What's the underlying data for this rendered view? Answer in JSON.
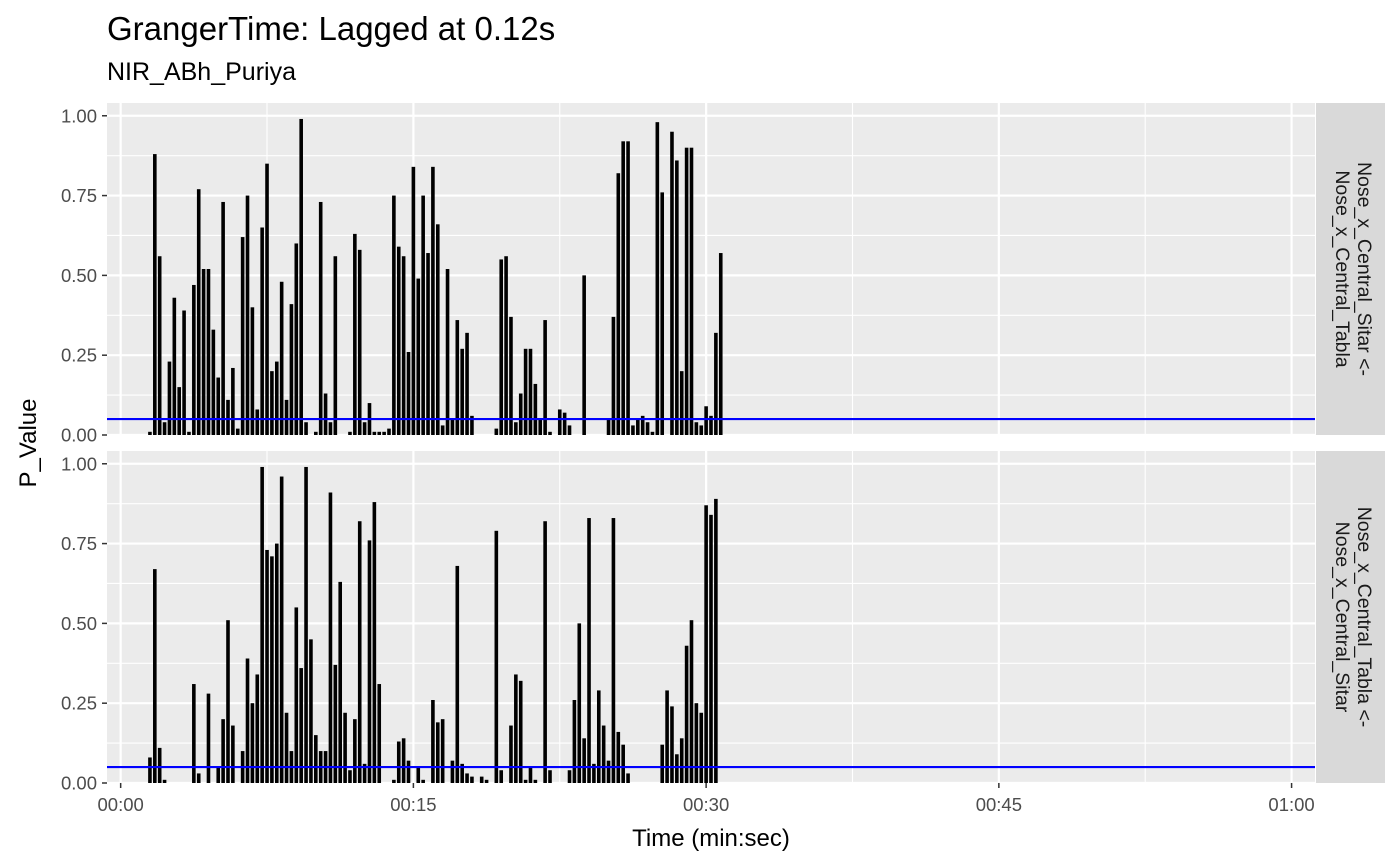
{
  "title": "GrangerTime: Lagged at 0.12s",
  "subtitle": "NIR_ABh_Puriya",
  "chart_data": {
    "type": "bar",
    "xlabel": "Time (min:sec)",
    "ylabel": "P_Value",
    "xlim_seconds": [
      -0.7,
      61.2
    ],
    "ylim": [
      0,
      1.04
    ],
    "x_ticks": [
      {
        "value": 0,
        "label": "00:00"
      },
      {
        "value": 15,
        "label": "00:15"
      },
      {
        "value": 30,
        "label": "00:30"
      },
      {
        "value": 45,
        "label": "00:45"
      },
      {
        "value": 60,
        "label": "01:00"
      }
    ],
    "y_ticks": [
      {
        "value": 0,
        "label": "0.00"
      },
      {
        "value": 0.25,
        "label": "0.25"
      },
      {
        "value": 0.5,
        "label": "0.50"
      },
      {
        "value": 0.75,
        "label": "0.75"
      },
      {
        "value": 1.0,
        "label": "1.00"
      }
    ],
    "threshold": {
      "value": 0.05,
      "color": "#0000ff"
    },
    "bar_color": "#000000",
    "panel_background": "#ebebeb",
    "strip_background": "#d9d9d9",
    "bar_spacing_seconds": 0.25,
    "panels": [
      {
        "strip_label": [
          "Nose_x_Central_Sitar <-",
          "Nose_x_Central_Tabla"
        ],
        "x_start": 1.5,
        "values": [
          0.01,
          0.88,
          0.56,
          0.04,
          0.23,
          0.43,
          0.15,
          0.39,
          0.01,
          0.47,
          0.77,
          0.52,
          0.52,
          0.33,
          0.18,
          0.73,
          0.11,
          0.21,
          0.02,
          0.62,
          0.75,
          0.4,
          0.08,
          0.65,
          0.85,
          0.2,
          0.23,
          0.48,
          0.11,
          0.41,
          0.6,
          0.99,
          0.04,
          0.0,
          0.01,
          0.73,
          0.13,
          0.04,
          0.56,
          0.0,
          0.0,
          0.01,
          0.63,
          0.58,
          0.04,
          0.1,
          0.01,
          0.01,
          0.01,
          0.02,
          0.75,
          0.59,
          0.56,
          0.26,
          0.84,
          0.49,
          0.75,
          0.57,
          0.84,
          0.66,
          0.03,
          0.52,
          0.05,
          0.36,
          0.27,
          0.32,
          0.06,
          0.0,
          0.0,
          0.0,
          0.0,
          0.02,
          0.55,
          0.56,
          0.37,
          0.04,
          0.13,
          0.27,
          0.27,
          0.16,
          0.05,
          0.36,
          0.01,
          0.0,
          0.08,
          0.07,
          0.03,
          0.0,
          0.0,
          0.5,
          0.0,
          0.0,
          0.0,
          0.0,
          0.05,
          0.37,
          0.82,
          0.92,
          0.92,
          0.03,
          0.05,
          0.06,
          0.04,
          0.01,
          0.98,
          0.76,
          0.0,
          0.95,
          0.86,
          0.2,
          0.9,
          0.9,
          0.04,
          0.03,
          0.09,
          0.06,
          0.32,
          0.57
        ]
      },
      {
        "strip_label": [
          "Nose_x_Central_Tabla <-",
          "Nose_x_Central_Sitar"
        ],
        "x_start": 1.5,
        "values": [
          0.08,
          0.67,
          0.11,
          0.01,
          0.0,
          0.0,
          0.0,
          0.0,
          0.0,
          0.31,
          0.03,
          0.0,
          0.28,
          0.0,
          0.05,
          0.2,
          0.51,
          0.18,
          0.0,
          0.1,
          0.39,
          0.25,
          0.34,
          0.99,
          0.73,
          0.71,
          0.75,
          0.96,
          0.22,
          0.1,
          0.55,
          0.36,
          0.99,
          0.45,
          0.15,
          0.1,
          0.1,
          0.91,
          0.37,
          0.63,
          0.22,
          0.04,
          0.2,
          0.82,
          0.06,
          0.76,
          0.88,
          0.31,
          0.0,
          0.0,
          0.01,
          0.13,
          0.14,
          0.07,
          0.0,
          0.05,
          0.01,
          0.0,
          0.26,
          0.19,
          0.2,
          0.0,
          0.07,
          0.68,
          0.06,
          0.03,
          0.02,
          0.0,
          0.02,
          0.01,
          0.0,
          0.79,
          0.04,
          0.0,
          0.18,
          0.34,
          0.32,
          0.01,
          0.05,
          0.01,
          0.0,
          0.82,
          0.04,
          0.0,
          0.0,
          0.0,
          0.04,
          0.26,
          0.5,
          0.14,
          0.83,
          0.06,
          0.29,
          0.18,
          0.07,
          0.83,
          0.16,
          0.12,
          0.03,
          0.0,
          0.0,
          0.0,
          0.0,
          0.0,
          0.0,
          0.12,
          0.29,
          0.24,
          0.09,
          0.14,
          0.43,
          0.51,
          0.25,
          0.22,
          0.87,
          0.84,
          0.89
        ]
      }
    ]
  }
}
